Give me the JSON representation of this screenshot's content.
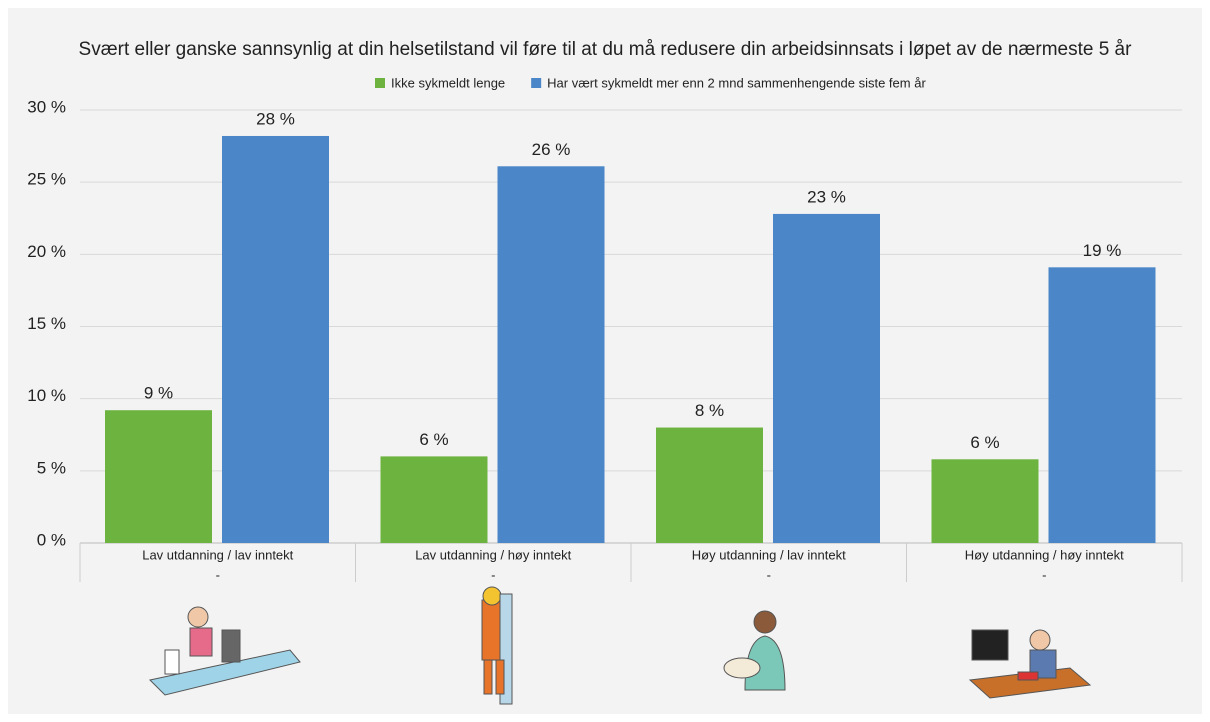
{
  "chart_data": {
    "type": "bar",
    "title": "Svært eller ganske sannsynlig at din helsetilstand vil føre til at du må redusere din arbeidsinnsats i løpet av de nærmeste 5 år",
    "categories": [
      "Lav utdanning / lav inntekt",
      "Lav utdanning / høy inntekt",
      "Høy utdanning / lav inntekt",
      "Høy utdanning / høy inntekt"
    ],
    "subcategories": [
      "-",
      "-",
      "-",
      "-"
    ],
    "series": [
      {
        "name": "Ikke sykmeldt lenge",
        "color": "#6db33f",
        "values": [
          9.2,
          6.0,
          8.0,
          5.8
        ],
        "value_labels": [
          "9 %",
          "6 %",
          "8 %",
          "6 %"
        ]
      },
      {
        "name": "Har vært sykmeldt mer enn 2 mnd sammenhengende siste fem år",
        "color": "#4a86c8",
        "values": [
          28.2,
          26.1,
          22.8,
          19.1
        ],
        "value_labels": [
          "28 %",
          "26 %",
          "23 %",
          "19 %"
        ]
      }
    ],
    "ylim": [
      0,
      30
    ],
    "yticks": [
      {
        "value": 0,
        "label": "0 %"
      },
      {
        "value": 5,
        "label": "5 %"
      },
      {
        "value": 10,
        "label": "10 %"
      },
      {
        "value": 15,
        "label": "15 %"
      },
      {
        "value": 20,
        "label": "20 %"
      },
      {
        "value": 25,
        "label": "25 %"
      },
      {
        "value": 30,
        "label": "30 %"
      }
    ],
    "grid": true,
    "legend": "top"
  }
}
